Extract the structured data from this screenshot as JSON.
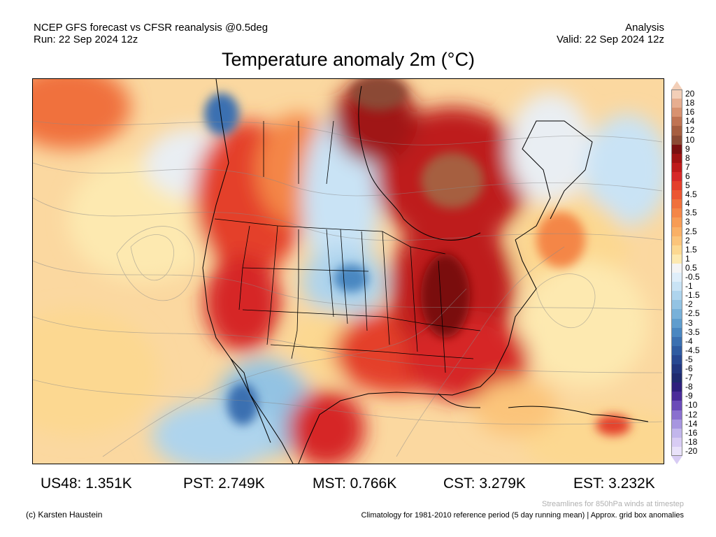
{
  "header": {
    "model_line": "NCEP GFS forecast vs CFSR reanalysis @0.5deg",
    "run_line": "Run: 22 Sep 2024 12z",
    "mode": "Analysis",
    "valid_line": "Valid: 22 Sep 2024 12z"
  },
  "title": "Temperature anomaly 2m (°C)",
  "legend": {
    "bins": [
      {
        "label": "20",
        "color": "#f3cfb8"
      },
      {
        "label": "18",
        "color": "#e7ae90"
      },
      {
        "label": "16",
        "color": "#d89270"
      },
      {
        "label": "14",
        "color": "#c07453"
      },
      {
        "label": "12",
        "color": "#a65e40"
      },
      {
        "label": "10",
        "color": "#8b4a34"
      },
      {
        "label": "9",
        "color": "#7a1010"
      },
      {
        "label": "8",
        "color": "#a01313"
      },
      {
        "label": "7",
        "color": "#be1b1b"
      },
      {
        "label": "6",
        "color": "#d62828"
      },
      {
        "label": "5",
        "color": "#e43f2b"
      },
      {
        "label": "4.5",
        "color": "#ec5733"
      },
      {
        "label": "4",
        "color": "#f0713c"
      },
      {
        "label": "3.5",
        "color": "#f48647"
      },
      {
        "label": "3",
        "color": "#f79c55"
      },
      {
        "label": "2.5",
        "color": "#f9b066"
      },
      {
        "label": "2",
        "color": "#fbc47a"
      },
      {
        "label": "1.5",
        "color": "#fcd891"
      },
      {
        "label": "1",
        "color": "#fde9b0"
      },
      {
        "label": "0.5",
        "color": "#f4f4f4"
      },
      {
        "label": "-0.5",
        "color": "#dfeefa"
      },
      {
        "label": "-1",
        "color": "#c9e3f5"
      },
      {
        "label": "-1.5",
        "color": "#aed4ed"
      },
      {
        "label": "-2",
        "color": "#93c3e3"
      },
      {
        "label": "-2.5",
        "color": "#78b1d9"
      },
      {
        "label": "-3",
        "color": "#5f9dce"
      },
      {
        "label": "-3.5",
        "color": "#4a87c1"
      },
      {
        "label": "-4",
        "color": "#3b70b1"
      },
      {
        "label": "-4.5",
        "color": "#2f5ba1"
      },
      {
        "label": "-5",
        "color": "#274791"
      },
      {
        "label": "-6",
        "color": "#22367f"
      },
      {
        "label": "-7",
        "color": "#1f2a6f"
      },
      {
        "label": "-8",
        "color": "#2e1f7d"
      },
      {
        "label": "-9",
        "color": "#4a2b99"
      },
      {
        "label": "-10",
        "color": "#6a4bb8"
      },
      {
        "label": "-12",
        "color": "#8a70cf"
      },
      {
        "label": "-14",
        "color": "#a796e0"
      },
      {
        "label": "-16",
        "color": "#c2b6ec"
      },
      {
        "label": "-18",
        "color": "#d8ccf4"
      },
      {
        "label": "-20",
        "color": "#e9e2fa"
      }
    ]
  },
  "stats": [
    {
      "label": "US48: 1.351K"
    },
    {
      "label": "PST: 2.749K"
    },
    {
      "label": "MST: 0.766K"
    },
    {
      "label": "CST: 3.279K"
    },
    {
      "label": "EST: 3.232K"
    }
  ],
  "footer": {
    "credit": "(c) Karsten Haustein",
    "streamlines_note": "Streamlines for 850hPa winds at timestep",
    "climatology_note": "Climatology for 1981-2010 reference period (5 day running mean) | Approx. grid box anomalies"
  }
}
